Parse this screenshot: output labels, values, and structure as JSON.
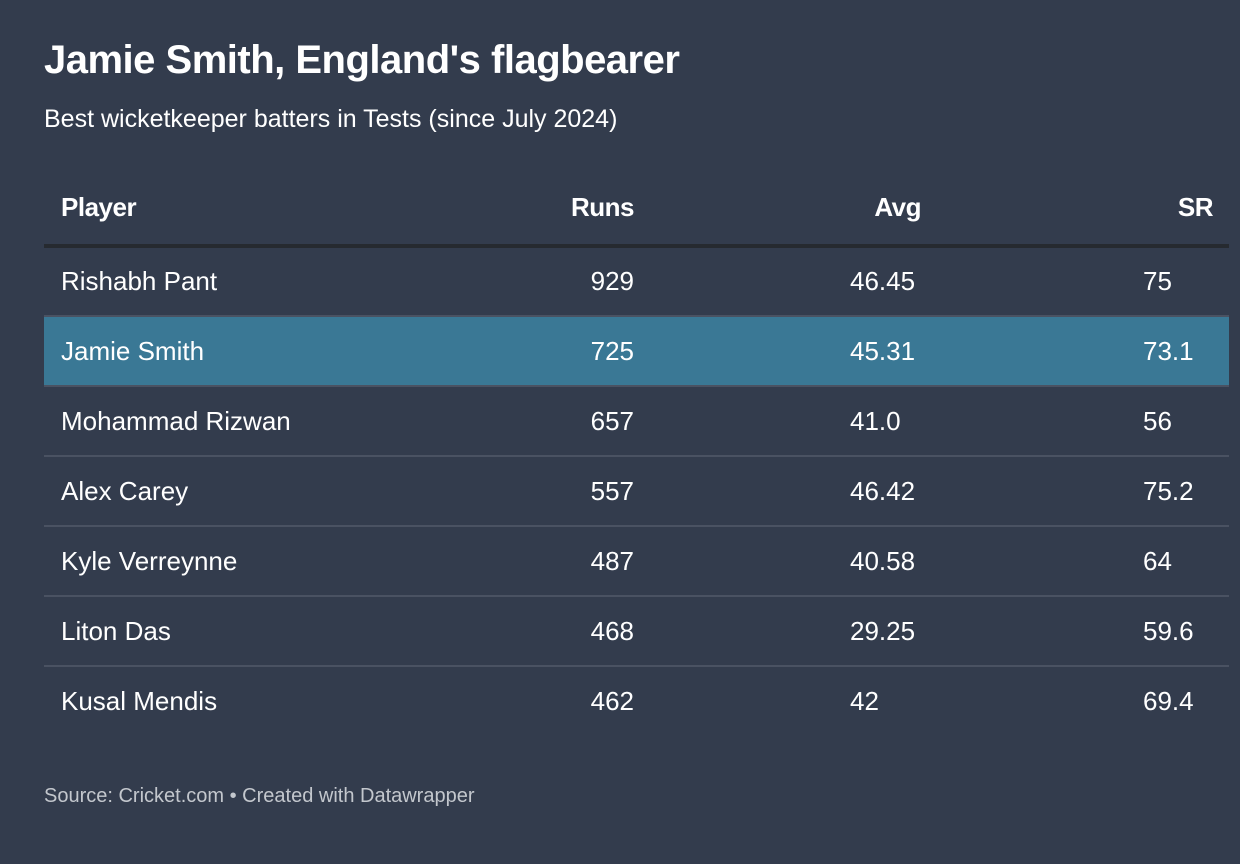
{
  "header": {
    "title": "Jamie Smith, England's flagbearer",
    "subtitle": "Best wicketkeeper batters in Tests (since July 2024)"
  },
  "table": {
    "columns": [
      "Player",
      "Runs",
      "Avg",
      "SR"
    ],
    "rows": [
      {
        "player": "Rishabh Pant",
        "runs": "929",
        "avg": "46.45",
        "sr": "75",
        "highlight": false
      },
      {
        "player": "Jamie Smith",
        "runs": "725",
        "avg": "45.31",
        "sr": "73.1",
        "highlight": true
      },
      {
        "player": "Mohammad Rizwan",
        "runs": "657",
        "avg": "41.0",
        "sr": "56",
        "highlight": false
      },
      {
        "player": "Alex Carey",
        "runs": "557",
        "avg": "46.42",
        "sr": "75.2",
        "highlight": false
      },
      {
        "player": "Kyle Verreynne",
        "runs": "487",
        "avg": "40.58",
        "sr": "64",
        "highlight": false
      },
      {
        "player": "Liton Das",
        "runs": "468",
        "avg": "29.25",
        "sr": "59.6",
        "highlight": false
      },
      {
        "player": "Kusal Mendis",
        "runs": "462",
        "avg": "42",
        "sr": "69.4",
        "highlight": false
      }
    ]
  },
  "footer": {
    "text": "Source: Cricket.com • Created with Datawrapper"
  },
  "colors": {
    "background": "#333c4d",
    "highlight_row": "#3a7895",
    "header_rule": "#262a30",
    "row_divider": "#4a5262",
    "footer_text": "#c3c7cd"
  },
  "chart_data": {
    "type": "table",
    "title": "Jamie Smith, England's flagbearer",
    "subtitle": "Best wicketkeeper batters in Tests (since July 2024)",
    "columns": [
      "Player",
      "Runs",
      "Avg",
      "SR"
    ],
    "rows": [
      [
        "Rishabh Pant",
        929,
        46.45,
        75
      ],
      [
        "Jamie Smith",
        725,
        45.31,
        73.1
      ],
      [
        "Mohammad Rizwan",
        657,
        41.0,
        56
      ],
      [
        "Alex Carey",
        557,
        46.42,
        75.2
      ],
      [
        "Kyle Verreynne",
        487,
        40.58,
        64
      ],
      [
        "Liton Das",
        468,
        29.25,
        59.6
      ],
      [
        "Kusal Mendis",
        462,
        42,
        69.4
      ]
    ],
    "highlighted_row": "Jamie Smith",
    "source": "Cricket.com",
    "credit": "Created with Datawrapper"
  }
}
